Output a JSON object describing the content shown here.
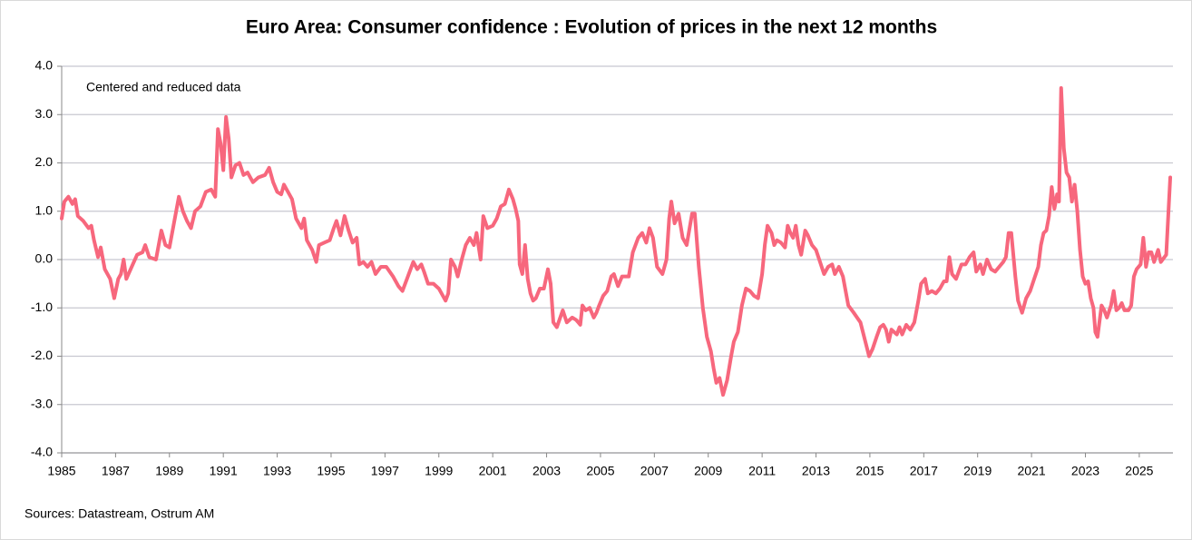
{
  "chart_data": {
    "type": "line",
    "title": "Euro Area: Consumer confidence : Evolution of prices in the next 12 months",
    "annotation": "Centered and reduced data",
    "source": "Sources: Datastream,  Ostrum AM",
    "color": "#f7677d",
    "grid": true,
    "xlim": [
      1985,
      2026.25
    ],
    "xticks": [
      1985,
      1987,
      1989,
      1991,
      1993,
      1995,
      1997,
      1999,
      2001,
      2003,
      2005,
      2007,
      2009,
      2011,
      2013,
      2015,
      2017,
      2019,
      2021,
      2023,
      2025
    ],
    "ylim": [
      -4,
      4
    ],
    "yticks": [
      {
        "value": -4,
        "label": "-4.0"
      },
      {
        "value": -3,
        "label": "-3.0"
      },
      {
        "value": -2,
        "label": "-2.0"
      },
      {
        "value": -1,
        "label": "-1.0"
      },
      {
        "value": 0,
        "label": "0.0"
      },
      {
        "value": 1,
        "label": "1.0"
      },
      {
        "value": 2,
        "label": "2.0"
      },
      {
        "value": 3,
        "label": "3.0"
      },
      {
        "value": 4,
        "label": "4.0"
      }
    ],
    "x": [
      1985.0,
      1985.1,
      1985.25,
      1985.4,
      1985.5,
      1985.6,
      1985.8,
      1986.0,
      1986.1,
      1986.2,
      1986.35,
      1986.45,
      1986.6,
      1986.8,
      1986.95,
      1987.1,
      1987.2,
      1987.3,
      1987.4,
      1987.6,
      1987.8,
      1988.0,
      1988.1,
      1988.25,
      1988.5,
      1988.6,
      1988.7,
      1988.85,
      1989.0,
      1989.15,
      1989.35,
      1989.5,
      1989.65,
      1989.8,
      1989.95,
      1990.15,
      1990.35,
      1990.55,
      1990.7,
      1990.8,
      1990.9,
      1991.0,
      1991.1,
      1991.2,
      1991.3,
      1991.45,
      1991.6,
      1991.75,
      1991.9,
      1992.1,
      1992.3,
      1992.55,
      1992.7,
      1992.85,
      1993.0,
      1993.15,
      1993.25,
      1993.4,
      1993.55,
      1993.7,
      1993.9,
      1994.0,
      1994.1,
      1994.3,
      1994.45,
      1994.55,
      1994.75,
      1994.95,
      1995.1,
      1995.2,
      1995.35,
      1995.5,
      1995.65,
      1995.8,
      1995.95,
      1996.05,
      1996.2,
      1996.35,
      1996.5,
      1996.65,
      1996.85,
      1997.05,
      1997.3,
      1997.5,
      1997.65,
      1997.85,
      1998.05,
      1998.2,
      1998.35,
      1998.45,
      1998.6,
      1998.8,
      1999.0,
      1999.15,
      1999.25,
      1999.35,
      1999.45,
      1999.6,
      1999.7,
      1999.85,
      2000.0,
      2000.15,
      2000.3,
      2000.4,
      2000.55,
      2000.65,
      2000.8,
      2001.0,
      2001.15,
      2001.3,
      2001.45,
      2001.6,
      2001.75,
      2001.85,
      2001.95,
      2002.0,
      2002.1,
      2002.2,
      2002.3,
      2002.4,
      2002.5,
      2002.6,
      2002.75,
      2002.9,
      2003.05,
      2003.15,
      2003.25,
      2003.38,
      2003.6,
      2003.75,
      2003.95,
      2004.1,
      2004.25,
      2004.33,
      2004.45,
      2004.6,
      2004.75,
      2004.85,
      2004.95,
      2005.1,
      2005.25,
      2005.4,
      2005.5,
      2005.65,
      2005.8,
      2006.05,
      2006.2,
      2006.4,
      2006.55,
      2006.7,
      2006.82,
      2006.95,
      2007.1,
      2007.3,
      2007.45,
      2007.55,
      2007.63,
      2007.75,
      2007.9,
      2008.05,
      2008.2,
      2008.4,
      2008.5,
      2008.65,
      2008.8,
      2008.95,
      2009.1,
      2009.2,
      2009.3,
      2009.42,
      2009.55,
      2009.7,
      2009.85,
      2009.95,
      2010.1,
      2010.25,
      2010.4,
      2010.55,
      2010.7,
      2010.85,
      2011.0,
      2011.1,
      2011.2,
      2011.35,
      2011.45,
      2011.55,
      2011.7,
      2011.85,
      2011.95,
      2012.05,
      2012.15,
      2012.25,
      2012.35,
      2012.45,
      2012.6,
      2012.7,
      2012.85,
      2013.0,
      2013.15,
      2013.3,
      2013.45,
      2013.6,
      2013.7,
      2013.85,
      2014.0,
      2014.2,
      2014.4,
      2014.65,
      2014.97,
      2015.1,
      2015.25,
      2015.38,
      2015.5,
      2015.6,
      2015.7,
      2015.8,
      2015.9,
      2016.0,
      2016.1,
      2016.2,
      2016.35,
      2016.5,
      2016.65,
      2016.8,
      2016.9,
      2017.05,
      2017.15,
      2017.3,
      2017.45,
      2017.6,
      2017.75,
      2017.85,
      2017.95,
      2018.05,
      2018.2,
      2018.4,
      2018.55,
      2018.7,
      2018.85,
      2018.95,
      2019.1,
      2019.2,
      2019.35,
      2019.5,
      2019.65,
      2019.8,
      2019.95,
      2020.05,
      2020.15,
      2020.25,
      2020.4,
      2020.5,
      2020.65,
      2020.8,
      2020.95,
      2021.1,
      2021.25,
      2021.35,
      2021.45,
      2021.55,
      2021.65,
      2021.75,
      2021.85,
      2021.95,
      2022.02,
      2022.1,
      2022.2,
      2022.3,
      2022.4,
      2022.5,
      2022.6,
      2022.7,
      2022.8,
      2022.9,
      2023.0,
      2023.1,
      2023.2,
      2023.3,
      2023.37,
      2023.45,
      2023.6,
      2023.7,
      2023.8,
      2023.95,
      2024.05,
      2024.15,
      2024.25,
      2024.35,
      2024.45,
      2024.6,
      2024.7,
      2024.8,
      2024.9,
      2025.05,
      2025.15,
      2025.25,
      2025.35,
      2025.45,
      2025.55,
      2025.7,
      2025.8,
      2026.0,
      2026.15
    ],
    "values": [
      0.85,
      1.2,
      1.3,
      1.15,
      1.25,
      0.9,
      0.8,
      0.65,
      0.7,
      0.4,
      0.05,
      0.25,
      -0.2,
      -0.4,
      -0.8,
      -0.4,
      -0.3,
      0.0,
      -0.4,
      -0.15,
      0.1,
      0.15,
      0.3,
      0.05,
      0.0,
      0.3,
      0.6,
      0.3,
      0.25,
      0.7,
      1.3,
      1.0,
      0.8,
      0.65,
      1.0,
      1.1,
      1.4,
      1.45,
      1.3,
      2.7,
      2.4,
      1.85,
      2.95,
      2.5,
      1.7,
      1.95,
      2.0,
      1.75,
      1.8,
      1.6,
      1.7,
      1.75,
      1.9,
      1.6,
      1.4,
      1.35,
      1.55,
      1.4,
      1.25,
      0.85,
      0.65,
      0.85,
      0.4,
      0.2,
      -0.05,
      0.3,
      0.35,
      0.4,
      0.65,
      0.8,
      0.5,
      0.9,
      0.6,
      0.35,
      0.45,
      -0.1,
      -0.05,
      -0.15,
      -0.05,
      -0.3,
      -0.15,
      -0.15,
      -0.35,
      -0.55,
      -0.65,
      -0.35,
      -0.05,
      -0.2,
      -0.1,
      -0.25,
      -0.5,
      -0.5,
      -0.6,
      -0.75,
      -0.85,
      -0.7,
      0.0,
      -0.15,
      -0.35,
      0.0,
      0.3,
      0.45,
      0.3,
      0.55,
      0.0,
      0.9,
      0.65,
      0.7,
      0.85,
      1.1,
      1.15,
      1.45,
      1.25,
      1.05,
      0.8,
      -0.1,
      -0.3,
      0.3,
      -0.4,
      -0.7,
      -0.85,
      -0.8,
      -0.6,
      -0.6,
      -0.2,
      -0.5,
      -1.3,
      -1.4,
      -1.05,
      -1.3,
      -1.2,
      -1.25,
      -1.35,
      -0.95,
      -1.05,
      -1.0,
      -1.2,
      -1.1,
      -0.95,
      -0.75,
      -0.65,
      -0.35,
      -0.3,
      -0.55,
      -0.35,
      -0.35,
      0.15,
      0.45,
      0.55,
      0.35,
      0.65,
      0.45,
      -0.15,
      -0.3,
      0.0,
      0.85,
      1.2,
      0.75,
      0.95,
      0.45,
      0.3,
      0.95,
      0.95,
      -0.15,
      -1.0,
      -1.6,
      -1.9,
      -2.25,
      -2.55,
      -2.45,
      -2.8,
      -2.5,
      -2.0,
      -1.7,
      -1.5,
      -0.95,
      -0.6,
      -0.65,
      -0.75,
      -0.8,
      -0.3,
      0.3,
      0.7,
      0.55,
      0.3,
      0.4,
      0.35,
      0.25,
      0.7,
      0.55,
      0.45,
      0.7,
      0.3,
      0.1,
      0.6,
      0.5,
      0.3,
      0.2,
      -0.05,
      -0.3,
      -0.15,
      -0.1,
      -0.3,
      -0.15,
      -0.35,
      -0.95,
      -1.1,
      -1.3,
      -2.0,
      -1.85,
      -1.6,
      -1.4,
      -1.35,
      -1.45,
      -1.7,
      -1.45,
      -1.5,
      -1.55,
      -1.4,
      -1.55,
      -1.35,
      -1.45,
      -1.3,
      -0.85,
      -0.5,
      -0.4,
      -0.7,
      -0.65,
      -0.7,
      -0.6,
      -0.45,
      -0.45,
      0.05,
      -0.3,
      -0.4,
      -0.1,
      -0.1,
      0.05,
      0.15,
      -0.25,
      -0.1,
      -0.3,
      0.0,
      -0.2,
      -0.25,
      -0.15,
      -0.05,
      0.05,
      0.55,
      0.55,
      -0.35,
      -0.85,
      -1.1,
      -0.8,
      -0.65,
      -0.4,
      -0.15,
      0.3,
      0.55,
      0.6,
      0.9,
      1.5,
      1.05,
      1.35,
      1.2,
      3.55,
      2.3,
      1.8,
      1.7,
      1.2,
      1.55,
      1.0,
      0.2,
      -0.35,
      -0.5,
      -0.45,
      -0.8,
      -1.0,
      -1.5,
      -1.6,
      -0.95,
      -1.05,
      -1.2,
      -0.95,
      -0.65,
      -1.05,
      -1.0,
      -0.9,
      -1.05,
      -1.05,
      -0.95,
      -0.35,
      -0.2,
      -0.1,
      0.45,
      -0.15,
      0.15,
      0.15,
      -0.05,
      0.2,
      -0.05,
      0.1,
      1.7
    ]
  }
}
